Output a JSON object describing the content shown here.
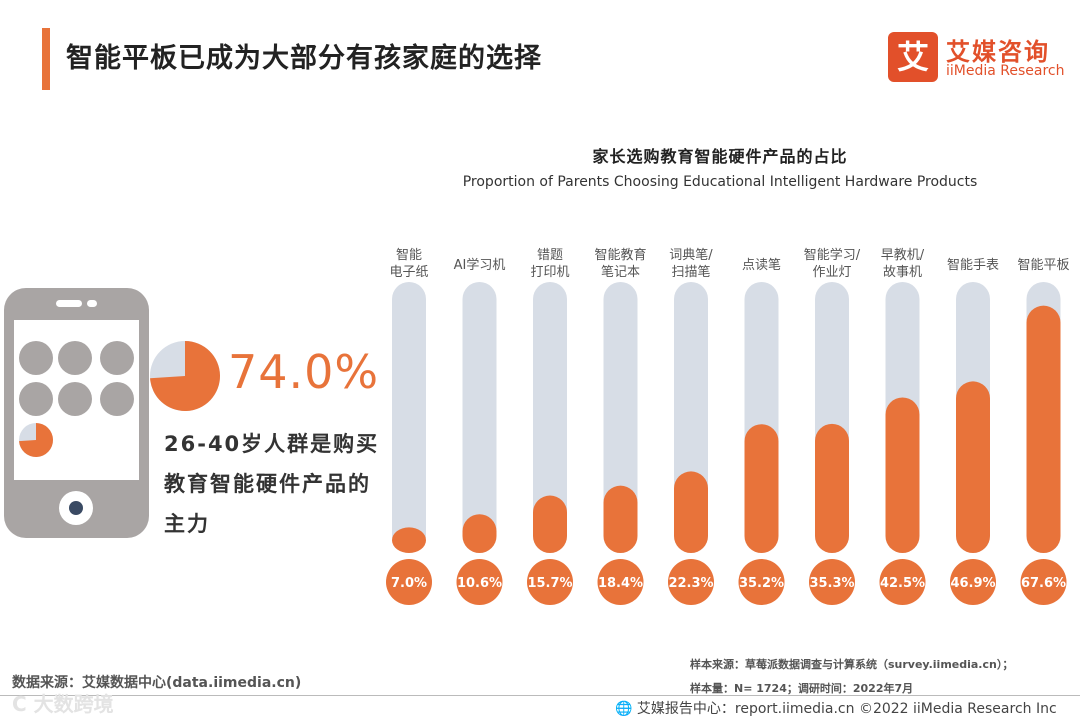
{
  "page": {
    "title": "智能平板已成为大部分有孩家庭的选择"
  },
  "logo": {
    "mark": "艾",
    "name_cn": "艾媒咨询",
    "name_en": "iiMedia Research"
  },
  "highlight": {
    "value": "74.0%",
    "fraction": 0.74,
    "description": "26-40岁人群是购买教育智能硬件产品的主力"
  },
  "colors": {
    "accent": "#e8733a",
    "track": "#d7dde6",
    "phone": "#a9a5a4",
    "pie_bg": "#d7dde6"
  },
  "chart_data": {
    "type": "bar",
    "title": "家长选购教育智能硬件产品的占比",
    "subtitle": "Proportion of Parents Choosing Educational Intelligent Hardware Products",
    "categories": [
      [
        "智能",
        "电子纸"
      ],
      [
        "AI学习机"
      ],
      [
        "错题",
        "打印机"
      ],
      [
        "智能教育",
        "笔记本"
      ],
      [
        "词典笔/",
        "扫描笔"
      ],
      [
        "点读笔"
      ],
      [
        "智能学习/",
        "作业灯"
      ],
      [
        "早教机/",
        "故事机"
      ],
      [
        "智能手表"
      ],
      [
        "智能平板"
      ]
    ],
    "values": [
      7.0,
      10.6,
      15.7,
      18.4,
      22.3,
      35.2,
      35.3,
      42.5,
      46.9,
      67.6
    ],
    "value_labels": [
      "7.0%",
      "10.6%",
      "15.7%",
      "18.4%",
      "22.3%",
      "35.2%",
      "35.3%",
      "42.5%",
      "46.9%",
      "67.6%"
    ],
    "unit": "%",
    "ylim": [
      0,
      100
    ]
  },
  "footer": {
    "source": "数据来源：艾媒数据中心(data.iimedia.cn)",
    "sample_source": "样本来源：草莓派数据调查与计算系统（survey.iimedia.cn）；",
    "sample_info": "样本量：N= 1724；调研时间：2022年7月",
    "report": "🌐 艾媒报告中心：report.iimedia.cn    ©2022  iiMedia Research  Inc",
    "watermark": "C 大数跨境"
  }
}
